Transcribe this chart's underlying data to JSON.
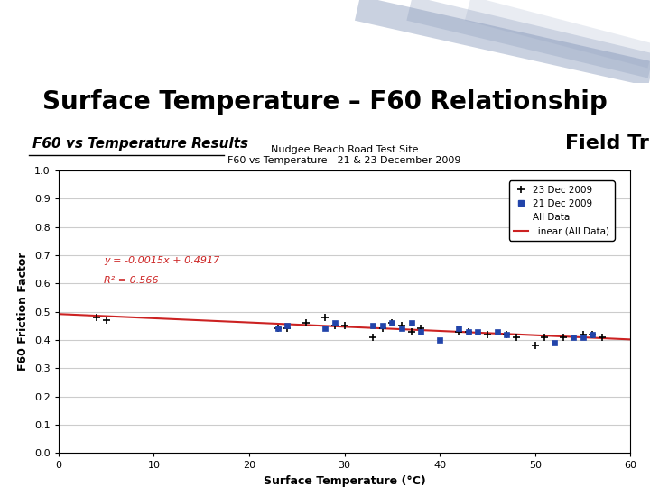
{
  "title_main": "Surface Temperature – F60 Relationship",
  "subtitle_left": "F60 vs Temperature Results",
  "subtitle_right": "Field Trial",
  "chart_title_line1": "Nudgee Beach Road Test Site",
  "chart_title_line2": "F60 vs Temperature - 21 & 23 December 2009",
  "xlabel": "Surface Temperature (°C)",
  "ylabel": "F60 Friction Factor",
  "xlim": [
    0,
    60
  ],
  "ylim": [
    0.0,
    1.0
  ],
  "xticks": [
    0,
    10,
    20,
    30,
    40,
    50,
    60
  ],
  "yticks": [
    0.0,
    0.1,
    0.2,
    0.3,
    0.4,
    0.5,
    0.6,
    0.7,
    0.8,
    0.9,
    1.0
  ],
  "slope": -0.0015,
  "intercept": 0.4917,
  "r_squared": 0.566,
  "equation_text": "y = -0.0015x + 0.4917",
  "r2_text": "R² = 0.566",
  "header_bg": "#1a3668",
  "header_stripe_color": "#8899bb",
  "roadtek_text_color": "#ffffff",
  "title_text_color": "#000000",
  "subtitle_left_color": "#000000",
  "subtitle_right_color": "#000000",
  "line_color": "#cc2222",
  "eq_text_color": "#cc2222",
  "data_23dec_x": [
    4,
    5,
    23,
    24,
    26,
    28,
    29,
    30,
    33,
    34,
    35,
    36,
    37,
    38,
    42,
    43,
    45,
    47,
    48,
    50,
    51,
    53,
    55,
    56,
    57
  ],
  "data_23dec_y": [
    0.48,
    0.47,
    0.44,
    0.44,
    0.46,
    0.48,
    0.45,
    0.45,
    0.41,
    0.44,
    0.46,
    0.45,
    0.43,
    0.44,
    0.43,
    0.43,
    0.42,
    0.42,
    0.41,
    0.38,
    0.41,
    0.41,
    0.42,
    0.42,
    0.41
  ],
  "data_21dec_x": [
    23,
    24,
    28,
    29,
    33,
    34,
    35,
    36,
    37,
    38,
    40,
    42,
    43,
    44,
    46,
    47,
    52,
    54,
    55,
    56
  ],
  "data_21dec_y": [
    0.44,
    0.45,
    0.44,
    0.46,
    0.45,
    0.45,
    0.46,
    0.44,
    0.46,
    0.43,
    0.4,
    0.44,
    0.43,
    0.43,
    0.43,
    0.42,
    0.39,
    0.41,
    0.41,
    0.42
  ],
  "legend_entries": [
    "23 Dec 2009",
    "21 Dec 2009",
    "All Data",
    "Linear (All Data)"
  ],
  "background_color": "#ffffff",
  "plot_bg_color": "#ffffff",
  "grid_color": "#cccccc"
}
